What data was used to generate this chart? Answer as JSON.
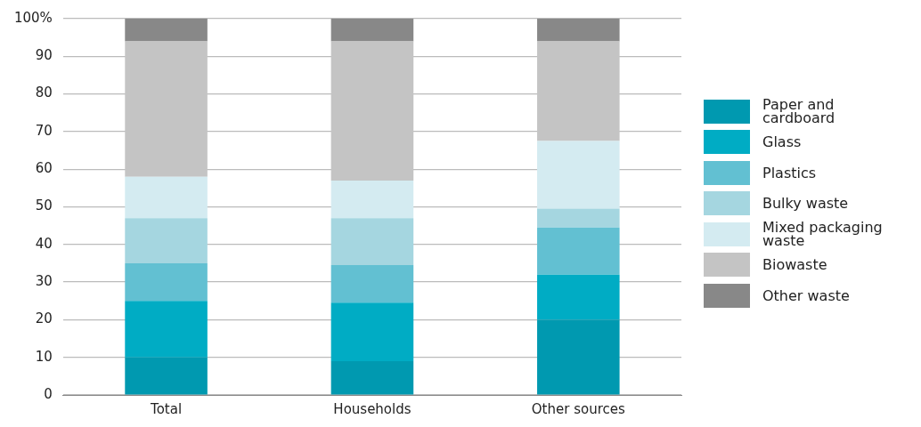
{
  "chart_data": {
    "type": "bar",
    "stacked": true,
    "categories": [
      "Total",
      "Households",
      "Other sources"
    ],
    "series": [
      {
        "name": "Paper and cardboard",
        "color": "#0099b0",
        "values": [
          10,
          9,
          20
        ]
      },
      {
        "name": "Glass",
        "color": "#00acc4",
        "values": [
          15,
          15.5,
          12
        ]
      },
      {
        "name": "Plastics",
        "color": "#62c0d2",
        "values": [
          10,
          10,
          12.5
        ]
      },
      {
        "name": "Bulky waste",
        "color": "#a5d6e0",
        "values": [
          12,
          12.5,
          5
        ]
      },
      {
        "name": "Mixed packaging waste",
        "color": "#d4ebf1",
        "values": [
          11,
          10,
          18
        ]
      },
      {
        "name": "Biowaste",
        "color": "#c4c4c4",
        "values": [
          36,
          37,
          26.5
        ]
      },
      {
        "name": "Other waste",
        "color": "#888888",
        "values": [
          6,
          6,
          6
        ]
      }
    ],
    "ylim": [
      0,
      100
    ],
    "yticks": [
      0,
      10,
      20,
      30,
      40,
      50,
      60,
      70,
      80,
      90,
      {
        "value": 100,
        "label": "100%"
      }
    ],
    "grid": "y",
    "legend": "right"
  }
}
